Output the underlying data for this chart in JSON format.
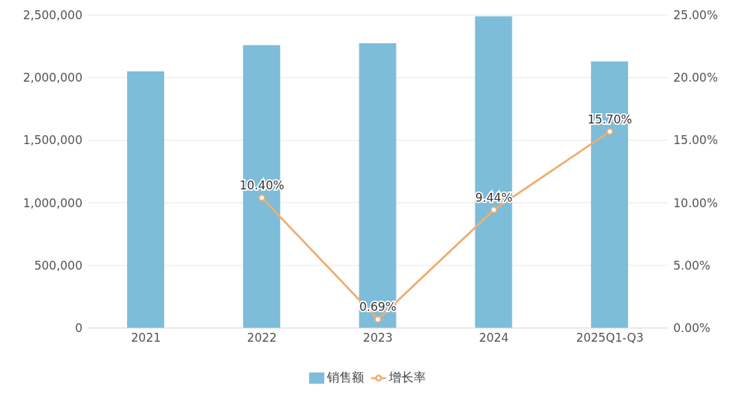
{
  "chart_data": {
    "type": "bar",
    "categories": [
      "2021",
      "2022",
      "2023",
      "2024",
      "2025Q1-Q3"
    ],
    "series": [
      {
        "name": "销售额",
        "color": "#7dbdd9",
        "values": [
          2050000,
          2260000,
          2275000,
          2490000,
          2130000
        ]
      },
      {
        "name": "增长率",
        "type": "line",
        "axis": "y2",
        "color": "#f0ad6e",
        "marker": "circle",
        "line_style": "solid",
        "values": [
          null,
          10.4,
          0.69,
          9.44,
          15.7
        ],
        "value_labels": [
          null,
          "10.40%",
          "0.69%",
          "9.44%",
          "15.70%"
        ]
      }
    ],
    "ylim": [
      0,
      2500000
    ],
    "yticks": [
      {
        "value": 0,
        "label": "0"
      },
      {
        "value": 500000,
        "label": "500,000"
      },
      {
        "value": 1000000,
        "label": "1,000,000"
      },
      {
        "value": 1500000,
        "label": "1,500,000"
      },
      {
        "value": 2000000,
        "label": "2,000,000"
      },
      {
        "value": 2500000,
        "label": "2,500,000"
      }
    ],
    "y2lim": [
      0,
      25
    ],
    "y2ticks": [
      {
        "value": 0,
        "label": "0.00%"
      },
      {
        "value": 5,
        "label": "5.00%"
      },
      {
        "value": 10,
        "label": "10.00%"
      },
      {
        "value": 15,
        "label": "15.00%"
      },
      {
        "value": 20,
        "label": "20.00%"
      },
      {
        "value": 25,
        "label": "25.00%"
      }
    ],
    "grid": "y",
    "legend": "bottom"
  }
}
